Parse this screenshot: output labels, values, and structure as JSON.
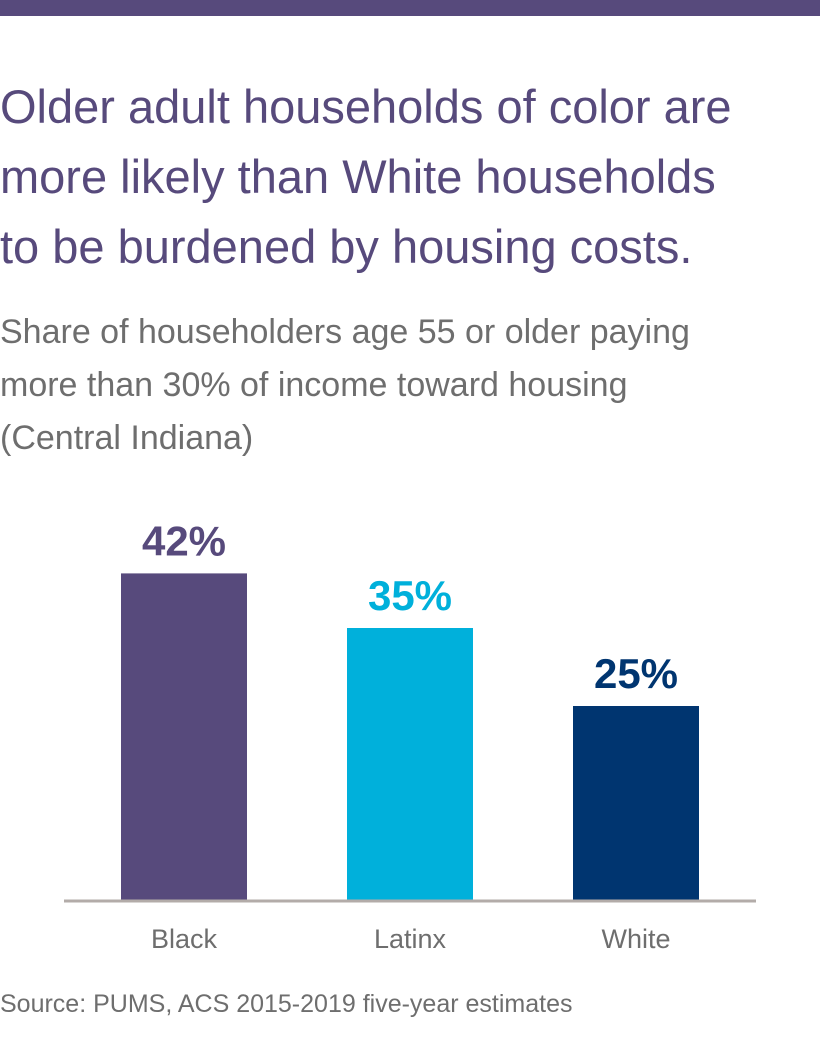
{
  "header": {
    "bar_color": "#574a7c"
  },
  "title_lines": [
    "Older adult households of color are",
    "more likely than White households",
    "to be burdened by housing costs."
  ],
  "subtitle_lines": [
    "Share of householders age 55 or older paying",
    "more than 30% of income toward housing",
    "(Central Indiana)"
  ],
  "source": "Source: PUMS, ACS 2015-2019 five-year estimates",
  "chart_data": {
    "type": "bar",
    "title": "Older adult households of color are more likely than White households to be burdened by housing costs.",
    "subtitle": "Share of householders age 55 or older paying more than 30% of income toward housing (Central Indiana)",
    "categories": [
      "Black",
      "Latinx",
      "White"
    ],
    "values": [
      42,
      35,
      25
    ],
    "data_labels": [
      "42%",
      "35%",
      "25%"
    ],
    "colors": [
      "#574a7c",
      "#00b0db",
      "#003570"
    ],
    "xlabel": "",
    "ylabel": "",
    "ylim": [
      0,
      100
    ],
    "unit": "%",
    "grid": false,
    "legend": "none",
    "axis_color": "#b3aca9",
    "category_label_color": "#6e6e6e"
  }
}
